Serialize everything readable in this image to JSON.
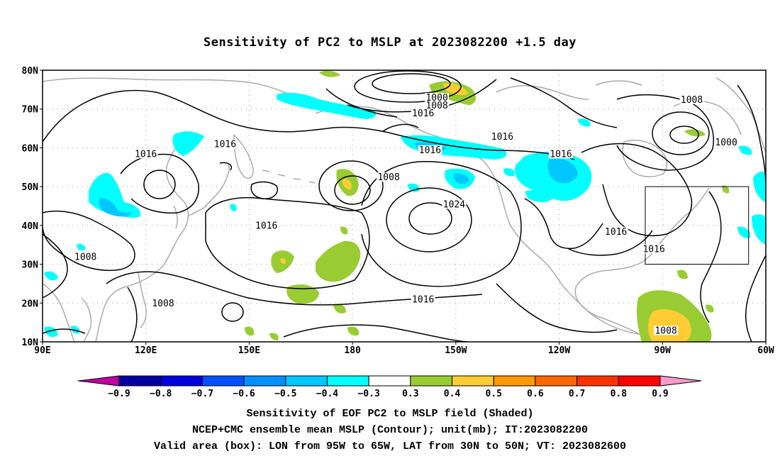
{
  "title": "Sensitivity of PC2 to MSLP at 2023082200 +1.5 day",
  "axes": {
    "lat_labels": [
      "80N",
      "70N",
      "60N",
      "50N",
      "40N",
      "30N",
      "20N",
      "10N"
    ],
    "lon_labels": [
      "90E",
      "120E",
      "150E",
      "180",
      "150W",
      "120W",
      "90W",
      "60W"
    ]
  },
  "contour_labels": [
    {
      "text": "1000",
      "lon": -155.5,
      "lat": 72.5
    },
    {
      "text": "1008",
      "lon": -155.5,
      "lat": 70.5
    },
    {
      "text": "1016",
      "lon": -159.5,
      "lat": 68.5
    },
    {
      "text": "1008",
      "lon": -81.5,
      "lat": 72.0
    },
    {
      "text": "1016",
      "lon": -136.5,
      "lat": 62.5
    },
    {
      "text": "1016",
      "lon": -119.5,
      "lat": 58.0
    },
    {
      "text": "1000",
      "lon": -71.5,
      "lat": 61.0
    },
    {
      "text": "1016",
      "lon": 120.0,
      "lat": 58.0
    },
    {
      "text": "1016",
      "lon": 143.0,
      "lat": 60.5
    },
    {
      "text": "1016",
      "lon": -157.5,
      "lat": 59.0
    },
    {
      "text": "1008",
      "lon": -169.5,
      "lat": 52.0
    },
    {
      "text": "1024",
      "lon": -150.5,
      "lat": 45.0
    },
    {
      "text": "1016",
      "lon": -103.5,
      "lat": 38.0
    },
    {
      "text": "1016",
      "lon": -92.5,
      "lat": 33.5
    },
    {
      "text": "1016",
      "lon": 155.0,
      "lat": 39.5
    },
    {
      "text": "1008",
      "lon": 102.5,
      "lat": 31.5
    },
    {
      "text": "1016",
      "lon": -159.5,
      "lat": 20.5
    },
    {
      "text": "1008",
      "lon": 125.0,
      "lat": 19.5
    },
    {
      "text": "1008",
      "lon": -89.0,
      "lat": 12.5
    }
  ],
  "valid_box": {
    "lon_min": -95,
    "lon_max": -65,
    "lat_min": 30,
    "lat_max": 50
  },
  "colorbar": {
    "labels": [
      "-0.9",
      "-0.8",
      "-0.7",
      "-0.6",
      "-0.5",
      "-0.4",
      "-0.3",
      "0.3",
      "0.4",
      "0.5",
      "0.6",
      "0.7",
      "0.8",
      "0.9"
    ],
    "colors": [
      "#0000a0",
      "#0000e0",
      "#0050ff",
      "#0090ff",
      "#00c8ff",
      "#00ffff",
      "#ffffff",
      "#99cc33",
      "#ffcc33",
      "#ff9900",
      "#ff6600",
      "#ff3300",
      "#ff0000"
    ],
    "low_color": "#c000a0",
    "high_color": "#ff99cc"
  },
  "shading_colors": {
    "cyan": "#00ffff",
    "lightblue": "#00c8ff",
    "blue": "#0090ff",
    "green": "#99cc33",
    "yellow": "#ffcc33"
  },
  "caption": {
    "line1": "Sensitivity of EOF PC2 to MSLP field (Shaded)",
    "line2": "NCEP+CMC ensemble mean MSLP (Contour); unit(mb); IT:2023082200",
    "line3": "Valid area (box): LON from 95W to 65W, LAT from 30N to 50N; VT: 2023082600"
  }
}
